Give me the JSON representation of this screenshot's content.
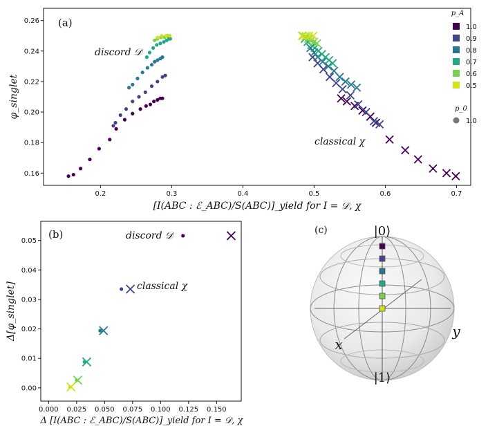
{
  "colors": {
    "1.0": "#440154",
    "0.9": "#414487",
    "0.8": "#2a788e",
    "0.7": "#22a884",
    "0.6": "#7ad151",
    "0.5": "#d2e21b"
  },
  "chart_data": [
    {
      "type": "scatter",
      "panel_label": "(a)",
      "xlabel": "[I(ABC : ℰ_ABC)/S(ABC)]_yield for I = 𝒟, χ",
      "ylabel": "φ_singlet",
      "xlim": [
        0.12,
        0.72
      ],
      "ylim": [
        0.152,
        0.268
      ],
      "xticks": [
        "0.1",
        "0.2",
        "0.3",
        "0.4",
        "0.5",
        "0.6",
        "0.7"
      ],
      "yticks": [
        "0.16",
        "0.18",
        "0.20",
        "0.22",
        "0.24",
        "0.26"
      ],
      "annotations": [
        "discord 𝒟",
        "classical χ"
      ],
      "legend": {
        "title_pA": "p_A",
        "pA_entries": [
          "1.0",
          "0.9",
          "0.8",
          "0.7",
          "0.6",
          "0.5"
        ],
        "title_p0": "p_0",
        "p0_entries": [
          "1.0"
        ],
        "placement": "right"
      },
      "series": [
        {
          "pA": "1.0",
          "marker": "dot",
          "x": [
            0.155,
            0.162,
            0.172,
            0.185,
            0.198,
            0.213,
            0.222,
            0.234,
            0.245,
            0.256,
            0.264,
            0.27,
            0.275,
            0.28,
            0.284,
            0.287
          ],
          "y": [
            0.158,
            0.159,
            0.163,
            0.169,
            0.176,
            0.182,
            0.189,
            0.195,
            0.199,
            0.202,
            0.204,
            0.205,
            0.207,
            0.208,
            0.209,
            0.209
          ]
        },
        {
          "pA": "0.9",
          "marker": "dot",
          "x": [
            0.218,
            0.221,
            0.228,
            0.236,
            0.245,
            0.254,
            0.263,
            0.272,
            0.28,
            0.287,
            0.291
          ],
          "y": [
            0.191,
            0.193,
            0.198,
            0.202,
            0.207,
            0.21,
            0.213,
            0.217,
            0.22,
            0.223,
            0.224
          ]
        },
        {
          "pA": "0.8",
          "marker": "dot",
          "x": [
            0.24,
            0.245,
            0.252,
            0.259,
            0.266,
            0.272,
            0.276,
            0.28,
            0.284,
            0.287
          ],
          "y": [
            0.216,
            0.218,
            0.222,
            0.226,
            0.229,
            0.231,
            0.233,
            0.234,
            0.235,
            0.236
          ]
        },
        {
          "pA": "0.7",
          "marker": "dot",
          "x": [
            0.265,
            0.269,
            0.274,
            0.279,
            0.284,
            0.289,
            0.293,
            0.296,
            0.298
          ],
          "y": [
            0.236,
            0.239,
            0.242,
            0.244,
            0.245,
            0.246,
            0.247,
            0.248,
            0.248
          ]
        },
        {
          "pA": "0.6",
          "marker": "dot",
          "x": [
            0.276,
            0.28,
            0.285,
            0.29,
            0.294,
            0.297
          ],
          "y": [
            0.247,
            0.248,
            0.249,
            0.249,
            0.25,
            0.25
          ]
        },
        {
          "pA": "0.5",
          "marker": "dot",
          "x": [
            0.28,
            0.286,
            0.292,
            0.297
          ],
          "y": [
            0.249,
            0.25,
            0.25,
            0.25
          ]
        },
        {
          "pA": "1.0",
          "marker": "x",
          "x": [
            0.538,
            0.546,
            0.557,
            0.568,
            0.579,
            0.587,
            0.606,
            0.628,
            0.646,
            0.667,
            0.686,
            0.699
          ],
          "y": [
            0.209,
            0.207,
            0.204,
            0.201,
            0.197,
            0.193,
            0.182,
            0.175,
            0.169,
            0.163,
            0.16,
            0.158
          ]
        },
        {
          "pA": "0.9",
          "marker": "x",
          "x": [
            0.498,
            0.505,
            0.513,
            0.522,
            0.531,
            0.54,
            0.551,
            0.562,
            0.573,
            0.584,
            0.592
          ],
          "y": [
            0.236,
            0.232,
            0.228,
            0.223,
            0.219,
            0.215,
            0.211,
            0.205,
            0.2,
            0.194,
            0.192
          ]
        },
        {
          "pA": "0.8",
          "marker": "x",
          "x": [
            0.495,
            0.5,
            0.505,
            0.512,
            0.52,
            0.528,
            0.536,
            0.544,
            0.552,
            0.56
          ],
          "y": [
            0.242,
            0.239,
            0.236,
            0.233,
            0.23,
            0.227,
            0.223,
            0.22,
            0.218,
            0.216
          ]
        },
        {
          "pA": "0.7",
          "marker": "x",
          "x": [
            0.487,
            0.491,
            0.496,
            0.501,
            0.506,
            0.511,
            0.516,
            0.521,
            0.526
          ],
          "y": [
            0.248,
            0.246,
            0.244,
            0.242,
            0.24,
            0.238,
            0.236,
            0.234,
            0.232
          ]
        },
        {
          "pA": "0.6",
          "marker": "x",
          "x": [
            0.484,
            0.488,
            0.492,
            0.496,
            0.5,
            0.504
          ],
          "y": [
            0.25,
            0.249,
            0.248,
            0.247,
            0.246,
            0.245
          ]
        },
        {
          "pA": "0.5",
          "marker": "x",
          "x": [
            0.483,
            0.488,
            0.493,
            0.499
          ],
          "y": [
            0.25,
            0.25,
            0.25,
            0.25
          ]
        }
      ]
    },
    {
      "type": "scatter",
      "panel_label": "(b)",
      "xlabel": "Δ [I(ABC : ℰ_ABC)/S(ABC)]_yield for I = 𝒟, χ",
      "ylabel": "Δ[φ_singlet]",
      "xlim": [
        -0.007,
        0.172
      ],
      "ylim": [
        -0.0045,
        0.0565
      ],
      "xticks": [
        "0.000",
        "0.025",
        "0.050",
        "0.075",
        "0.100",
        "0.125",
        "0.150"
      ],
      "yticks": [
        "0.00",
        "0.01",
        "0.02",
        "0.03",
        "0.04",
        "0.05"
      ],
      "annotations": [
        "discord 𝒟",
        "classical χ"
      ],
      "series": [
        {
          "marker": "dot",
          "pA": [
            "1.0",
            "0.9",
            "0.8",
            "0.7",
            "0.6",
            "0.5"
          ],
          "x": [
            0.12,
            0.065,
            0.046,
            0.032,
            0.025,
            0.019
          ],
          "y": [
            0.0516,
            0.0335,
            0.0194,
            0.0088,
            0.0026,
            0.0003
          ]
        },
        {
          "marker": "x",
          "pA": [
            "1.0",
            "0.9",
            "0.8",
            "0.7",
            "0.6",
            "0.5"
          ],
          "x": [
            0.163,
            0.073,
            0.049,
            0.034,
            0.026,
            0.02
          ],
          "y": [
            0.0516,
            0.0335,
            0.0194,
            0.0088,
            0.0026,
            0.0003
          ]
        }
      ]
    }
  ],
  "bloch": {
    "panel_label": "(c)",
    "top_label": "|0⟩",
    "bottom_label": "|1⟩",
    "x_label": "x",
    "y_label": "y",
    "markers": [
      "1.0",
      "0.9",
      "0.8",
      "0.7",
      "0.6",
      "0.5"
    ]
  }
}
